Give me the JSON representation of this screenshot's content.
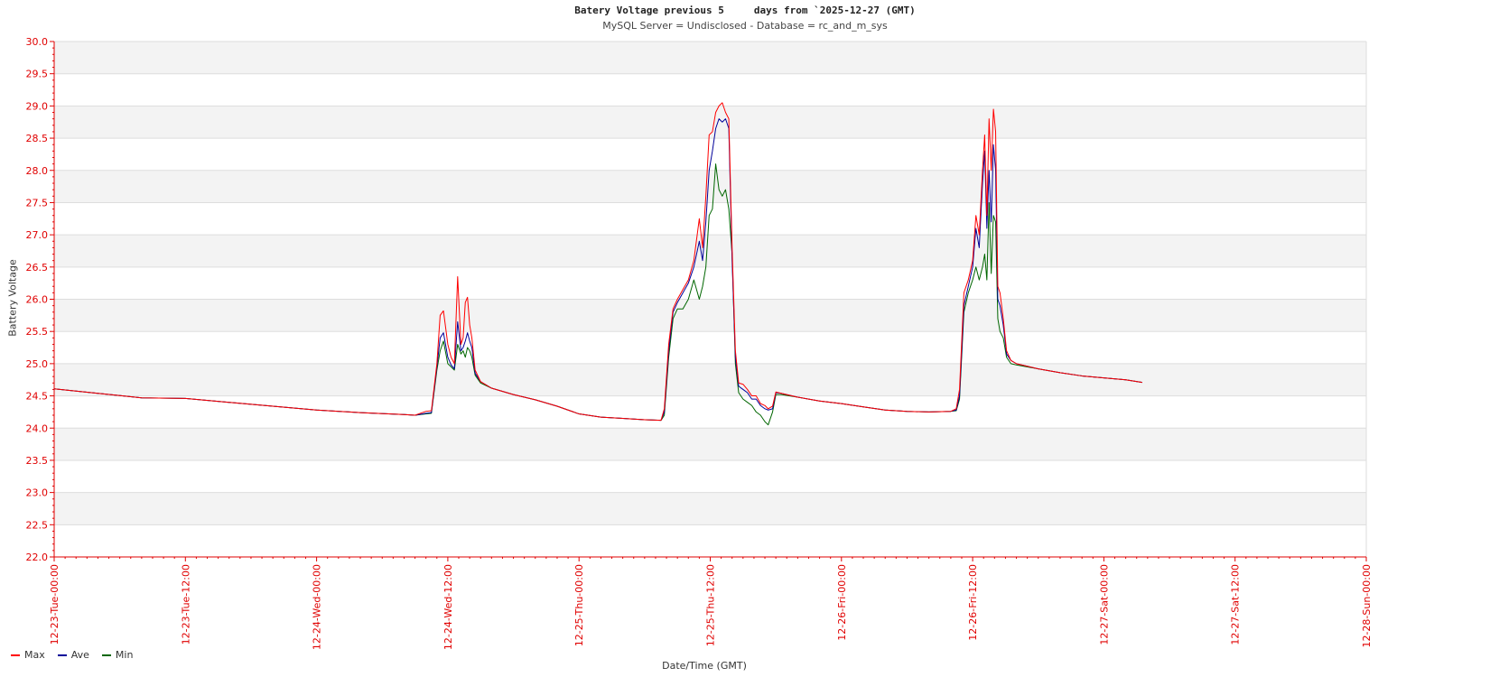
{
  "chart_data": {
    "type": "line",
    "title": "Batery Voltage previous 5     days from `2025-12-27 (GMT)",
    "subtitle": "MySQL Server = Undisclosed - Database = rc_and_m_sys",
    "xlabel": "Date/Time (GMT)",
    "ylabel": "Battery Voltage",
    "ylim": [
      22.0,
      30.0
    ],
    "yticks": [
      "22.0",
      "22.5",
      "23.0",
      "23.5",
      "24.0",
      "24.5",
      "25.0",
      "25.5",
      "26.0",
      "26.5",
      "27.0",
      "27.5",
      "28.0",
      "28.5",
      "29.0",
      "29.5",
      "30.0"
    ],
    "xlim_hours": [
      0,
      120
    ],
    "xticks": [
      {
        "hour": 0,
        "label": "12-23-Tue-00:00"
      },
      {
        "hour": 12,
        "label": "12-23-Tue-12:00"
      },
      {
        "hour": 24,
        "label": "12-24-Wed-00:00"
      },
      {
        "hour": 36,
        "label": "12-24-Wed-12:00"
      },
      {
        "hour": 48,
        "label": "12-25-Thu-00:00"
      },
      {
        "hour": 60,
        "label": "12-25-Thu-12:00"
      },
      {
        "hour": 72,
        "label": "12-26-Fri-00:00"
      },
      {
        "hour": 84,
        "label": "12-26-Fri-12:00"
      },
      {
        "hour": 96,
        "label": "12-27-Sat-00:00"
      },
      {
        "hour": 108,
        "label": "12-27-Sat-12:00"
      },
      {
        "hour": 120,
        "label": "12-28-Sun-00:00"
      }
    ],
    "grid": "horizontal bands",
    "legend_position": "bottom-left",
    "colors": {
      "axis": "#e00000",
      "band": "#f3f3f3",
      "max": "#ff0000",
      "ave": "#000099",
      "min": "#006600"
    },
    "series": [
      {
        "name": "Max",
        "color": "#ff0000",
        "points": [
          [
            0,
            24.61
          ],
          [
            4,
            24.54
          ],
          [
            8,
            24.47
          ],
          [
            12,
            24.46
          ],
          [
            16,
            24.4
          ],
          [
            20,
            24.34
          ],
          [
            24,
            24.28
          ],
          [
            28,
            24.24
          ],
          [
            32,
            24.21
          ],
          [
            33,
            24.2
          ],
          [
            34,
            24.26
          ],
          [
            34.5,
            24.27
          ],
          [
            35,
            25.0
          ],
          [
            35.3,
            25.75
          ],
          [
            35.6,
            25.82
          ],
          [
            36,
            25.3
          ],
          [
            36.3,
            25.1
          ],
          [
            36.6,
            25.0
          ],
          [
            36.9,
            26.35
          ],
          [
            37.2,
            25.3
          ],
          [
            37.4,
            25.4
          ],
          [
            37.6,
            25.95
          ],
          [
            37.8,
            26.03
          ],
          [
            38.0,
            25.6
          ],
          [
            38.2,
            25.4
          ],
          [
            38.5,
            24.9
          ],
          [
            39,
            24.72
          ],
          [
            40,
            24.62
          ],
          [
            42,
            24.52
          ],
          [
            44,
            24.44
          ],
          [
            46,
            24.34
          ],
          [
            48,
            24.22
          ],
          [
            50,
            24.17
          ],
          [
            52,
            24.15
          ],
          [
            54,
            24.13
          ],
          [
            55.5,
            24.12
          ],
          [
            55.8,
            24.3
          ],
          [
            56.2,
            25.3
          ],
          [
            56.6,
            25.85
          ],
          [
            57,
            26.0
          ],
          [
            57.5,
            26.15
          ],
          [
            58,
            26.3
          ],
          [
            58.5,
            26.6
          ],
          [
            59,
            27.25
          ],
          [
            59.3,
            26.8
          ],
          [
            59.6,
            27.6
          ],
          [
            59.9,
            28.55
          ],
          [
            60.2,
            28.6
          ],
          [
            60.5,
            28.9
          ],
          [
            60.8,
            29.0
          ],
          [
            61.1,
            29.05
          ],
          [
            61.4,
            28.9
          ],
          [
            61.7,
            28.8
          ],
          [
            62,
            26.8
          ],
          [
            62.3,
            25.2
          ],
          [
            62.6,
            24.7
          ],
          [
            63,
            24.68
          ],
          [
            63.4,
            24.6
          ],
          [
            63.8,
            24.5
          ],
          [
            64.2,
            24.5
          ],
          [
            64.6,
            24.38
          ],
          [
            65,
            24.35
          ],
          [
            65.3,
            24.3
          ],
          [
            65.7,
            24.34
          ],
          [
            66,
            24.56
          ],
          [
            66.5,
            24.54
          ],
          [
            68,
            24.48
          ],
          [
            70,
            24.42
          ],
          [
            72,
            24.38
          ],
          [
            74,
            24.33
          ],
          [
            76,
            24.28
          ],
          [
            78,
            24.26
          ],
          [
            80,
            24.25
          ],
          [
            82,
            24.26
          ],
          [
            82.5,
            24.3
          ],
          [
            82.8,
            24.6
          ],
          [
            83.2,
            26.1
          ],
          [
            83.6,
            26.3
          ],
          [
            84,
            26.6
          ],
          [
            84.3,
            27.3
          ],
          [
            84.6,
            27.0
          ],
          [
            84.9,
            28.0
          ],
          [
            85.1,
            28.55
          ],
          [
            85.3,
            27.3
          ],
          [
            85.5,
            28.8
          ],
          [
            85.7,
            28.0
          ],
          [
            85.9,
            28.95
          ],
          [
            86.1,
            28.6
          ],
          [
            86.3,
            26.2
          ],
          [
            86.5,
            26.1
          ],
          [
            86.8,
            25.7
          ],
          [
            87.1,
            25.2
          ],
          [
            87.5,
            25.05
          ],
          [
            88,
            25.0
          ],
          [
            90,
            24.92
          ],
          [
            92,
            24.86
          ],
          [
            94,
            24.81
          ],
          [
            96,
            24.78
          ],
          [
            98,
            24.75
          ],
          [
            99.5,
            24.71
          ]
        ]
      },
      {
        "name": "Ave",
        "color": "#000099",
        "points": [
          [
            0,
            24.61
          ],
          [
            4,
            24.54
          ],
          [
            8,
            24.47
          ],
          [
            12,
            24.46
          ],
          [
            16,
            24.4
          ],
          [
            20,
            24.34
          ],
          [
            24,
            24.28
          ],
          [
            28,
            24.24
          ],
          [
            32,
            24.21
          ],
          [
            33,
            24.2
          ],
          [
            34,
            24.23
          ],
          [
            34.5,
            24.24
          ],
          [
            35,
            24.95
          ],
          [
            35.3,
            25.4
          ],
          [
            35.6,
            25.48
          ],
          [
            36,
            25.1
          ],
          [
            36.3,
            24.98
          ],
          [
            36.6,
            24.92
          ],
          [
            36.9,
            25.65
          ],
          [
            37.2,
            25.2
          ],
          [
            37.4,
            25.25
          ],
          [
            37.6,
            25.35
          ],
          [
            37.8,
            25.48
          ],
          [
            38.0,
            25.35
          ],
          [
            38.2,
            25.25
          ],
          [
            38.5,
            24.85
          ],
          [
            39,
            24.72
          ],
          [
            40,
            24.62
          ],
          [
            42,
            24.52
          ],
          [
            44,
            24.44
          ],
          [
            46,
            24.34
          ],
          [
            48,
            24.22
          ],
          [
            50,
            24.17
          ],
          [
            52,
            24.15
          ],
          [
            54,
            24.13
          ],
          [
            55.5,
            24.12
          ],
          [
            55.8,
            24.25
          ],
          [
            56.2,
            25.2
          ],
          [
            56.6,
            25.8
          ],
          [
            57,
            25.95
          ],
          [
            57.5,
            26.1
          ],
          [
            58,
            26.25
          ],
          [
            58.5,
            26.5
          ],
          [
            59,
            26.9
          ],
          [
            59.3,
            26.6
          ],
          [
            59.6,
            27.2
          ],
          [
            59.9,
            28.0
          ],
          [
            60.2,
            28.3
          ],
          [
            60.5,
            28.65
          ],
          [
            60.8,
            28.8
          ],
          [
            61.1,
            28.75
          ],
          [
            61.4,
            28.8
          ],
          [
            61.7,
            28.65
          ],
          [
            62,
            26.6
          ],
          [
            62.3,
            25.1
          ],
          [
            62.6,
            24.65
          ],
          [
            63,
            24.6
          ],
          [
            63.4,
            24.55
          ],
          [
            63.8,
            24.45
          ],
          [
            64.2,
            24.45
          ],
          [
            64.6,
            24.35
          ],
          [
            65,
            24.3
          ],
          [
            65.3,
            24.28
          ],
          [
            65.7,
            24.3
          ],
          [
            66,
            24.55
          ],
          [
            66.5,
            24.54
          ],
          [
            68,
            24.48
          ],
          [
            70,
            24.42
          ],
          [
            72,
            24.38
          ],
          [
            74,
            24.33
          ],
          [
            76,
            24.28
          ],
          [
            78,
            24.26
          ],
          [
            80,
            24.25
          ],
          [
            82,
            24.26
          ],
          [
            82.5,
            24.28
          ],
          [
            82.8,
            24.5
          ],
          [
            83.2,
            25.9
          ],
          [
            83.6,
            26.2
          ],
          [
            84,
            26.5
          ],
          [
            84.3,
            27.1
          ],
          [
            84.6,
            26.8
          ],
          [
            84.9,
            27.8
          ],
          [
            85.1,
            28.3
          ],
          [
            85.3,
            27.1
          ],
          [
            85.5,
            28.0
          ],
          [
            85.7,
            27.2
          ],
          [
            85.9,
            28.4
          ],
          [
            86.1,
            28.0
          ],
          [
            86.3,
            26.0
          ],
          [
            86.5,
            25.9
          ],
          [
            86.8,
            25.6
          ],
          [
            87.1,
            25.15
          ],
          [
            87.5,
            25.05
          ],
          [
            88,
            25.0
          ],
          [
            90,
            24.92
          ],
          [
            92,
            24.86
          ],
          [
            94,
            24.81
          ],
          [
            96,
            24.78
          ],
          [
            98,
            24.75
          ],
          [
            99.5,
            24.71
          ]
        ]
      },
      {
        "name": "Min",
        "color": "#006600",
        "points": [
          [
            0,
            24.61
          ],
          [
            4,
            24.54
          ],
          [
            8,
            24.47
          ],
          [
            12,
            24.46
          ],
          [
            16,
            24.4
          ],
          [
            20,
            24.34
          ],
          [
            24,
            24.28
          ],
          [
            28,
            24.24
          ],
          [
            32,
            24.21
          ],
          [
            33,
            24.2
          ],
          [
            34,
            24.22
          ],
          [
            34.5,
            24.23
          ],
          [
            35,
            24.9
          ],
          [
            35.3,
            25.2
          ],
          [
            35.6,
            25.35
          ],
          [
            36,
            25.0
          ],
          [
            36.3,
            24.95
          ],
          [
            36.6,
            24.9
          ],
          [
            36.9,
            25.3
          ],
          [
            37.2,
            25.15
          ],
          [
            37.4,
            25.2
          ],
          [
            37.6,
            25.1
          ],
          [
            37.8,
            25.25
          ],
          [
            38.0,
            25.2
          ],
          [
            38.2,
            25.1
          ],
          [
            38.5,
            24.82
          ],
          [
            39,
            24.7
          ],
          [
            40,
            24.62
          ],
          [
            42,
            24.52
          ],
          [
            44,
            24.44
          ],
          [
            46,
            24.34
          ],
          [
            48,
            24.22
          ],
          [
            50,
            24.17
          ],
          [
            52,
            24.15
          ],
          [
            54,
            24.13
          ],
          [
            55.5,
            24.12
          ],
          [
            55.8,
            24.2
          ],
          [
            56.2,
            25.1
          ],
          [
            56.6,
            25.7
          ],
          [
            57,
            25.85
          ],
          [
            57.5,
            25.85
          ],
          [
            58,
            26.0
          ],
          [
            58.5,
            26.3
          ],
          [
            59,
            26.0
          ],
          [
            59.3,
            26.2
          ],
          [
            59.6,
            26.5
          ],
          [
            59.9,
            27.3
          ],
          [
            60.2,
            27.4
          ],
          [
            60.5,
            28.1
          ],
          [
            60.8,
            27.7
          ],
          [
            61.1,
            27.6
          ],
          [
            61.4,
            27.7
          ],
          [
            61.7,
            27.4
          ],
          [
            62,
            26.7
          ],
          [
            62.3,
            25.0
          ],
          [
            62.6,
            24.55
          ],
          [
            63,
            24.45
          ],
          [
            63.4,
            24.4
          ],
          [
            63.8,
            24.35
          ],
          [
            64.2,
            24.25
          ],
          [
            64.6,
            24.2
          ],
          [
            65,
            24.1
          ],
          [
            65.3,
            24.05
          ],
          [
            65.7,
            24.25
          ],
          [
            66,
            24.52
          ],
          [
            66.5,
            24.52
          ],
          [
            68,
            24.48
          ],
          [
            70,
            24.42
          ],
          [
            72,
            24.38
          ],
          [
            74,
            24.33
          ],
          [
            76,
            24.28
          ],
          [
            78,
            24.26
          ],
          [
            80,
            24.25
          ],
          [
            82,
            24.26
          ],
          [
            82.5,
            24.27
          ],
          [
            82.8,
            24.45
          ],
          [
            83.2,
            25.8
          ],
          [
            83.6,
            26.1
          ],
          [
            84,
            26.3
          ],
          [
            84.3,
            26.5
          ],
          [
            84.6,
            26.3
          ],
          [
            84.9,
            26.5
          ],
          [
            85.1,
            26.7
          ],
          [
            85.3,
            26.3
          ],
          [
            85.5,
            27.5
          ],
          [
            85.7,
            26.4
          ],
          [
            85.9,
            27.3
          ],
          [
            86.1,
            27.2
          ],
          [
            86.3,
            25.7
          ],
          [
            86.5,
            25.5
          ],
          [
            86.8,
            25.4
          ],
          [
            87.1,
            25.1
          ],
          [
            87.5,
            25.0
          ],
          [
            88,
            24.98
          ],
          [
            90,
            24.92
          ],
          [
            92,
            24.86
          ],
          [
            94,
            24.81
          ],
          [
            96,
            24.78
          ],
          [
            98,
            24.75
          ],
          [
            99.5,
            24.71
          ]
        ]
      }
    ]
  }
}
